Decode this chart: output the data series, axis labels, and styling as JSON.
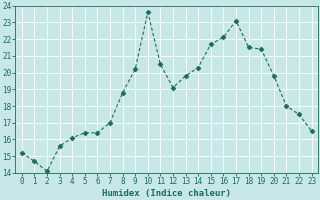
{
  "x": [
    0,
    1,
    2,
    3,
    4,
    5,
    6,
    7,
    8,
    9,
    10,
    11,
    12,
    13,
    14,
    15,
    16,
    17,
    18,
    19,
    20,
    21,
    22,
    23
  ],
  "y": [
    15.2,
    14.7,
    14.1,
    15.6,
    16.1,
    16.4,
    16.4,
    17.0,
    18.8,
    20.2,
    23.6,
    20.5,
    19.1,
    19.8,
    20.3,
    21.7,
    22.1,
    23.1,
    21.5,
    21.4,
    19.8,
    18.0,
    17.5,
    16.5
  ],
  "line_color": "#1a6b5a",
  "marker": "D",
  "marker_size": 2.5,
  "bg_color": "#c8e8e8",
  "grid_color": "#ffffff",
  "xlabel": "Humidex (Indice chaleur)",
  "xlim": [
    -0.5,
    23.5
  ],
  "ylim": [
    14,
    24
  ],
  "yticks": [
    14,
    15,
    16,
    17,
    18,
    19,
    20,
    21,
    22,
    23,
    24
  ],
  "xticks": [
    0,
    1,
    2,
    3,
    4,
    5,
    6,
    7,
    8,
    9,
    10,
    11,
    12,
    13,
    14,
    15,
    16,
    17,
    18,
    19,
    20,
    21,
    22,
    23
  ],
  "tick_fontsize": 5.5,
  "xlabel_fontsize": 6.5
}
